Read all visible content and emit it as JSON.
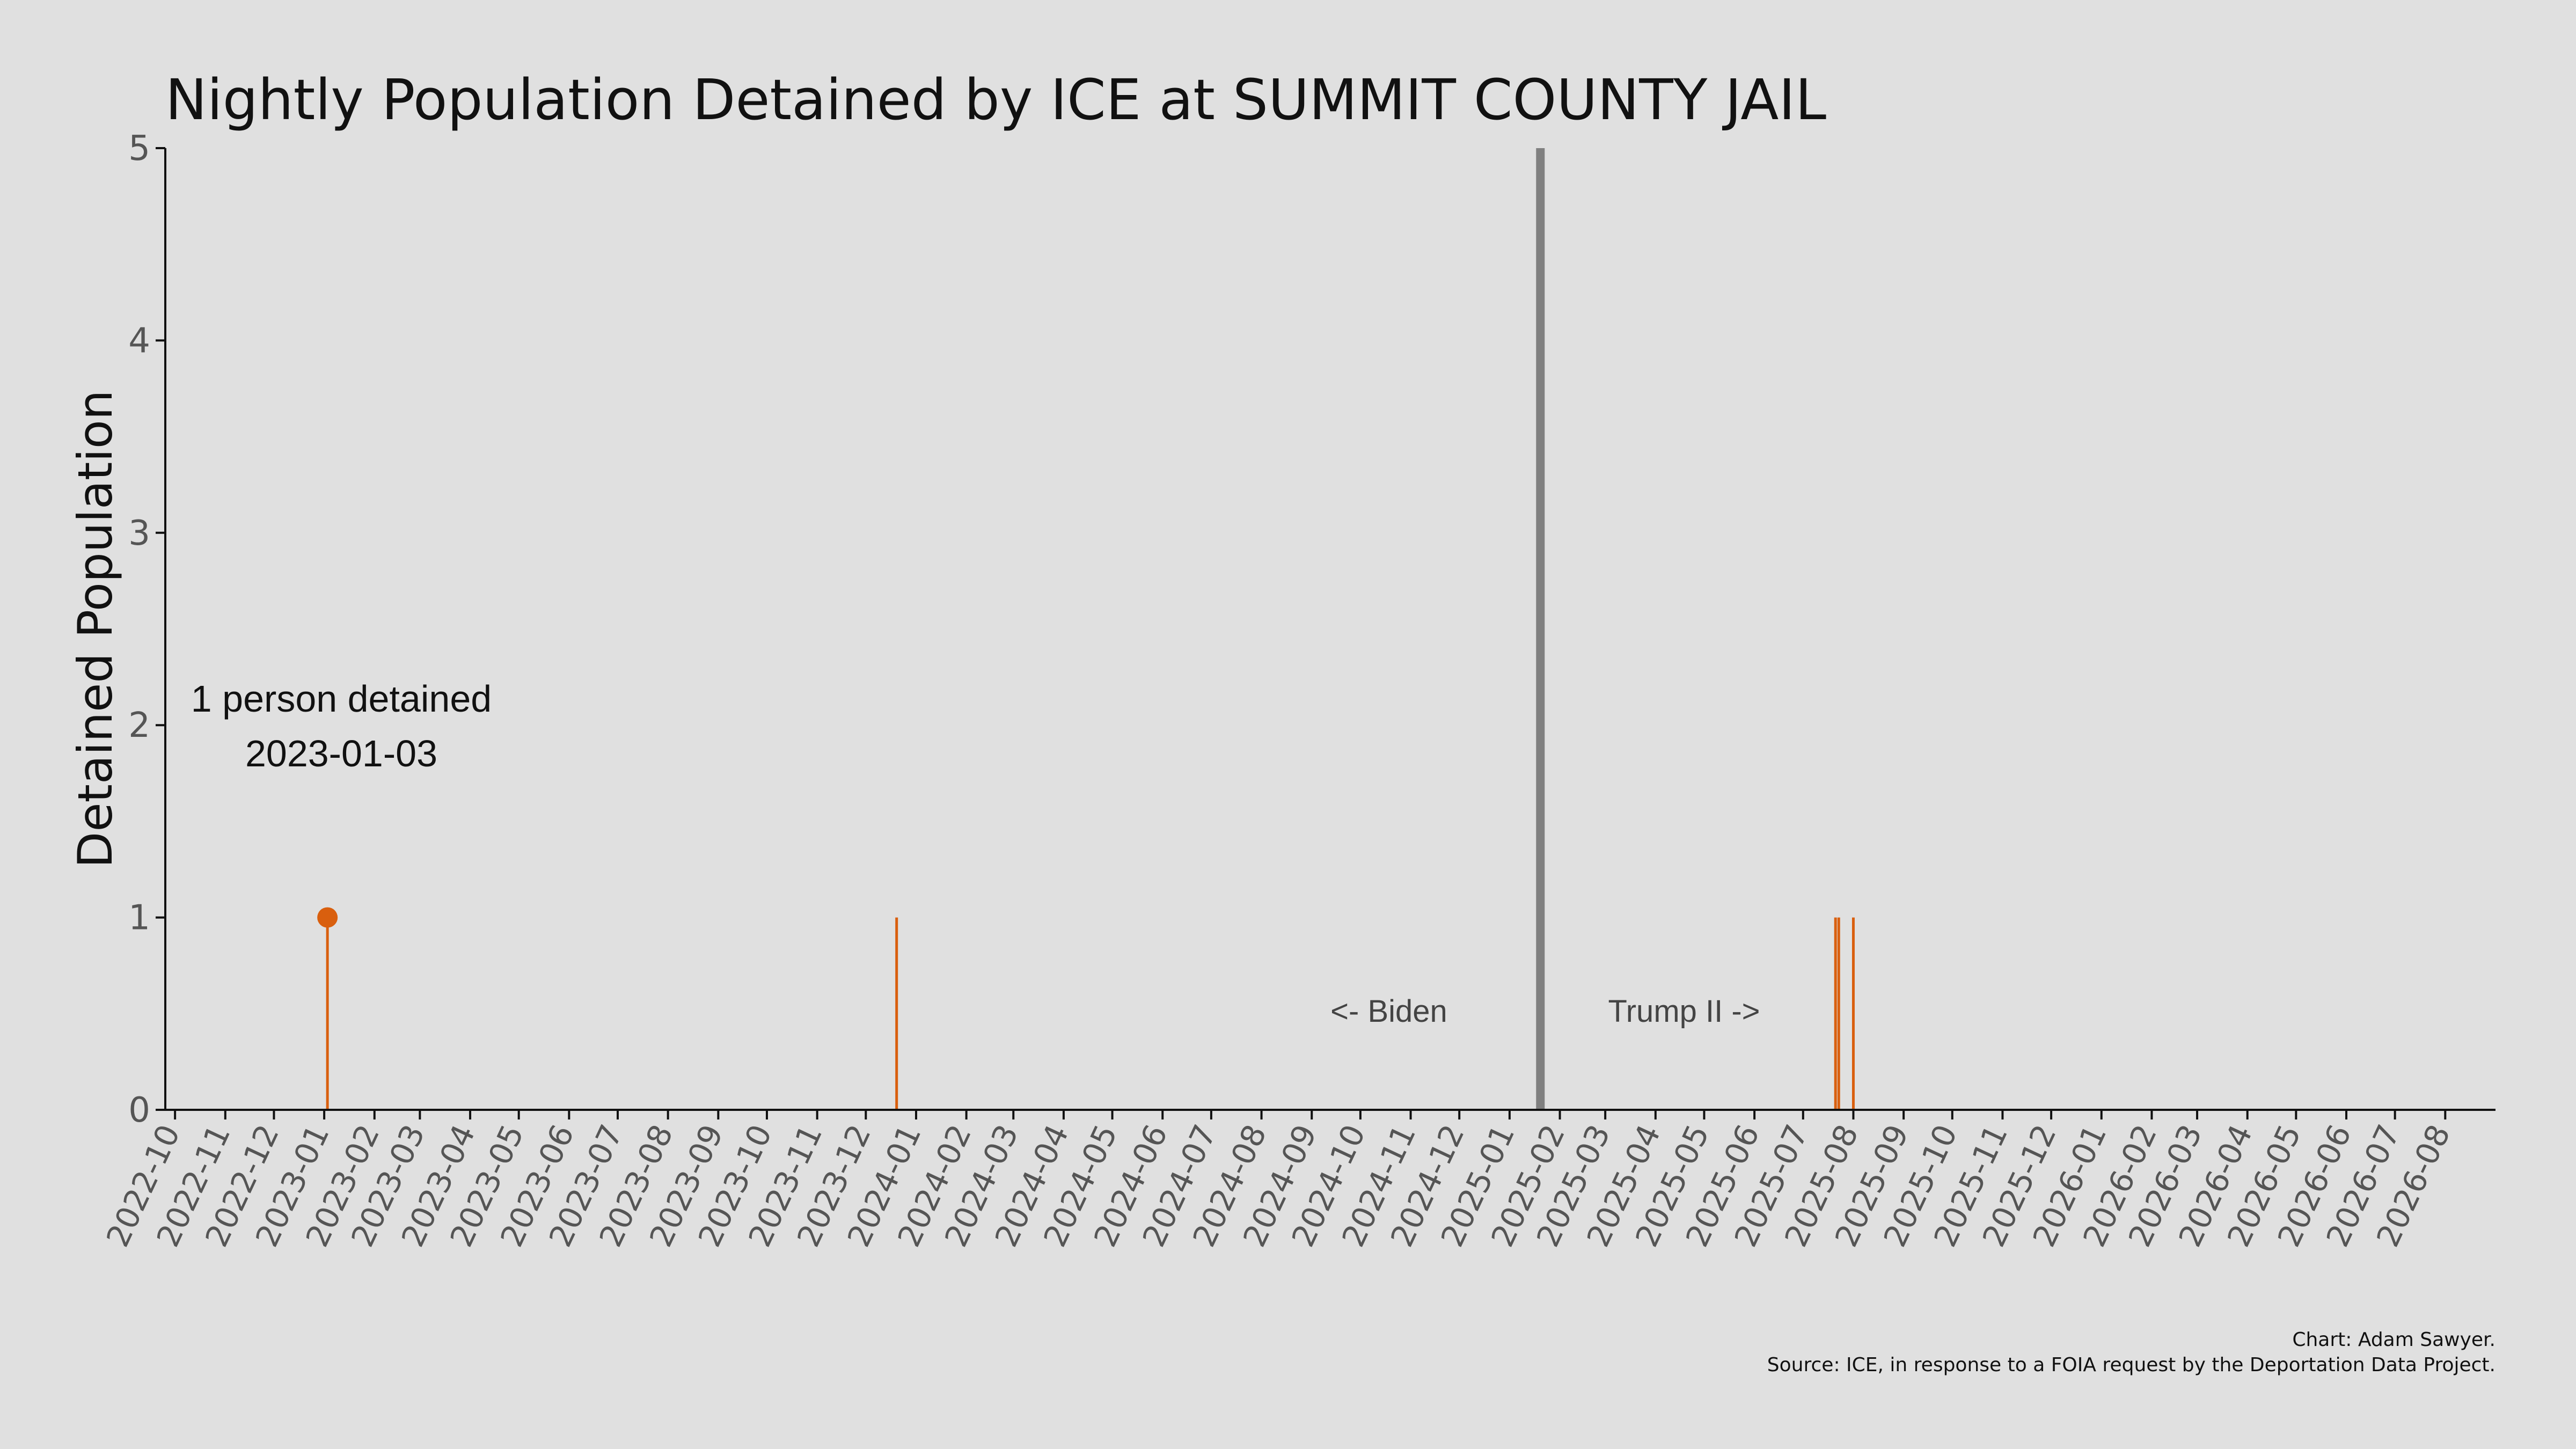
{
  "chart_data": {
    "type": "line",
    "title": "Nightly Population Detained by ICE at SUMMIT COUNTY JAIL",
    "ylabel": "Detained Population",
    "xlabel": "",
    "ylim": [
      0,
      5
    ],
    "yticks": [
      "0",
      "1",
      "2",
      "3",
      "4",
      "5"
    ],
    "xlim": [
      "2022-09-25",
      "2026-09-01"
    ],
    "xticks": [
      "2022-10",
      "2022-11",
      "2022-12",
      "2023-01",
      "2023-02",
      "2023-03",
      "2023-04",
      "2023-05",
      "2023-06",
      "2023-07",
      "2023-08",
      "2023-09",
      "2023-10",
      "2023-11",
      "2023-12",
      "2024-01",
      "2024-02",
      "2024-03",
      "2024-04",
      "2024-05",
      "2024-06",
      "2024-07",
      "2024-08",
      "2024-09",
      "2024-10",
      "2024-11",
      "2024-12",
      "2025-01",
      "2025-02",
      "2025-03",
      "2025-04",
      "2025-05",
      "2025-06",
      "2025-07",
      "2025-08",
      "2025-09",
      "2025-10",
      "2025-11",
      "2025-12",
      "2026-01",
      "2026-02",
      "2026-03",
      "2026-04",
      "2026-05",
      "2026-06",
      "2026-07",
      "2026-08"
    ],
    "grid": false,
    "series": [
      {
        "color": "#d95f0e",
        "x": [
          "2023-01-03",
          "2023-12-20",
          "2025-07-21",
          "2025-07-23",
          "2025-08-01"
        ],
        "y": [
          1,
          1,
          1,
          1,
          1
        ]
      }
    ],
    "highlight": {
      "x": "2023-01-03",
      "y": 1,
      "color": "#d95f0e"
    },
    "divider": {
      "x": "2025-01-20",
      "color": "#808080"
    },
    "annotations": {
      "highlight_line1": "1 person detained",
      "highlight_line2": "2023-01-03",
      "left_era": "<- Biden",
      "right_era": "Trump II ->"
    }
  },
  "credits": {
    "line1": "Chart: Adam Sawyer.",
    "line2": "Source: ICE, in response to a FOIA request by the Deportation Data Project."
  }
}
